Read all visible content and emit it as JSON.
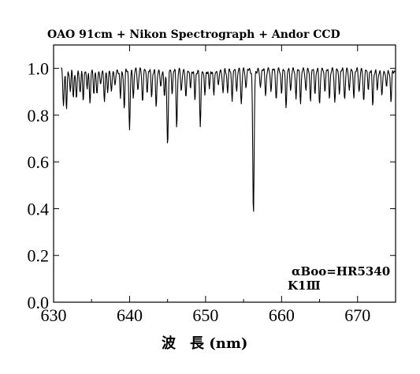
{
  "chart_data": {
    "type": "line",
    "title": "OAO 91cm + Nikon Spectrograph + Andor CCD",
    "xlabel": "波　長 (nm)",
    "ylabel": "",
    "xlim": [
      630,
      675
    ],
    "ylim": [
      0.0,
      1.1
    ],
    "x_ticks": [
      630,
      640,
      650,
      660,
      670
    ],
    "y_ticks": [
      0.0,
      0.2,
      0.4,
      0.6,
      0.8,
      1.0
    ],
    "x_tick_labels": [
      "630",
      "640",
      "650",
      "660",
      "670"
    ],
    "y_tick_labels": [
      "0.0",
      "0.2",
      "0.4",
      "0.6",
      "0.8",
      "1.0"
    ],
    "grid": false,
    "annotations": [
      "αBoo=HR5340",
      "K1Ⅲ"
    ],
    "series": [
      {
        "color": "#000000",
        "x_range": [
          631.0,
          675.0
        ],
        "continuum": 0.99,
        "absorption_lines": [
          {
            "x": 631.3,
            "y": 0.84
          },
          {
            "x": 631.7,
            "y": 0.82
          },
          {
            "x": 632.2,
            "y": 0.9
          },
          {
            "x": 632.6,
            "y": 0.88
          },
          {
            "x": 633.0,
            "y": 0.86
          },
          {
            "x": 633.5,
            "y": 0.89
          },
          {
            "x": 633.9,
            "y": 0.87
          },
          {
            "x": 634.4,
            "y": 0.91
          },
          {
            "x": 634.8,
            "y": 0.85
          },
          {
            "x": 635.3,
            "y": 0.9
          },
          {
            "x": 635.7,
            "y": 0.88
          },
          {
            "x": 636.2,
            "y": 0.92
          },
          {
            "x": 636.7,
            "y": 0.86
          },
          {
            "x": 637.1,
            "y": 0.9
          },
          {
            "x": 637.6,
            "y": 0.89
          },
          {
            "x": 638.1,
            "y": 0.92
          },
          {
            "x": 638.8,
            "y": 0.87
          },
          {
            "x": 639.3,
            "y": 0.83
          },
          {
            "x": 640.0,
            "y": 0.73
          },
          {
            "x": 640.5,
            "y": 0.88
          },
          {
            "x": 641.1,
            "y": 0.91
          },
          {
            "x": 641.7,
            "y": 0.86
          },
          {
            "x": 642.3,
            "y": 0.9
          },
          {
            "x": 642.9,
            "y": 0.88
          },
          {
            "x": 643.5,
            "y": 0.83
          },
          {
            "x": 644.1,
            "y": 0.91
          },
          {
            "x": 644.6,
            "y": 0.87
          },
          {
            "x": 645.0,
            "y": 0.68
          },
          {
            "x": 645.6,
            "y": 0.9
          },
          {
            "x": 646.2,
            "y": 0.75
          },
          {
            "x": 646.8,
            "y": 0.9
          },
          {
            "x": 647.4,
            "y": 0.87
          },
          {
            "x": 648.0,
            "y": 0.91
          },
          {
            "x": 648.6,
            "y": 0.86
          },
          {
            "x": 649.3,
            "y": 0.74
          },
          {
            "x": 649.9,
            "y": 0.88
          },
          {
            "x": 650.5,
            "y": 0.91
          },
          {
            "x": 651.1,
            "y": 0.88
          },
          {
            "x": 651.7,
            "y": 0.92
          },
          {
            "x": 652.3,
            "y": 0.89
          },
          {
            "x": 652.9,
            "y": 0.9
          },
          {
            "x": 653.5,
            "y": 0.87
          },
          {
            "x": 654.1,
            "y": 0.91
          },
          {
            "x": 654.7,
            "y": 0.85
          },
          {
            "x": 655.3,
            "y": 0.92
          },
          {
            "x": 656.3,
            "y": 0.36
          },
          {
            "x": 657.2,
            "y": 0.92
          },
          {
            "x": 657.9,
            "y": 0.89
          },
          {
            "x": 658.6,
            "y": 0.91
          },
          {
            "x": 659.3,
            "y": 0.87
          },
          {
            "x": 660.0,
            "y": 0.9
          },
          {
            "x": 660.6,
            "y": 0.84
          },
          {
            "x": 661.2,
            "y": 0.91
          },
          {
            "x": 661.9,
            "y": 0.88
          },
          {
            "x": 662.5,
            "y": 0.86
          },
          {
            "x": 663.2,
            "y": 0.91
          },
          {
            "x": 663.8,
            "y": 0.87
          },
          {
            "x": 664.4,
            "y": 0.9
          },
          {
            "x": 665.0,
            "y": 0.85
          },
          {
            "x": 665.7,
            "y": 0.91
          },
          {
            "x": 666.3,
            "y": 0.88
          },
          {
            "x": 667.0,
            "y": 0.86
          },
          {
            "x": 667.6,
            "y": 0.9
          },
          {
            "x": 668.3,
            "y": 0.87
          },
          {
            "x": 668.9,
            "y": 0.91
          },
          {
            "x": 669.5,
            "y": 0.88
          },
          {
            "x": 670.2,
            "y": 0.9
          },
          {
            "x": 670.8,
            "y": 0.86
          },
          {
            "x": 671.4,
            "y": 0.91
          },
          {
            "x": 672.0,
            "y": 0.84
          },
          {
            "x": 672.6,
            "y": 0.9
          },
          {
            "x": 673.2,
            "y": 0.87
          },
          {
            "x": 673.8,
            "y": 0.91
          },
          {
            "x": 674.4,
            "y": 0.85
          }
        ]
      }
    ]
  }
}
